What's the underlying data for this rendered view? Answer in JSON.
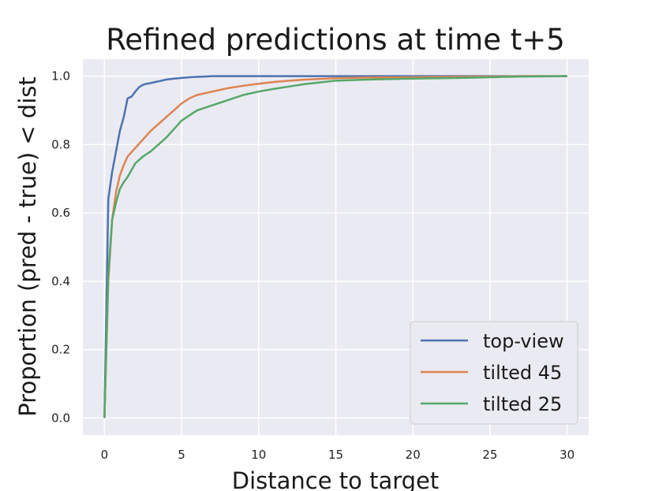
{
  "chart_data": {
    "type": "line",
    "title": "Refined predictions at time t+5",
    "xlabel": "Distance to target",
    "ylabel": "Proportion (pred - true) < dist",
    "xlim": [
      -1.4,
      31.4
    ],
    "ylim": [
      -0.05,
      1.05
    ],
    "xticks": [
      0,
      5,
      10,
      15,
      20,
      25,
      30
    ],
    "yticks": [
      0.0,
      0.2,
      0.4,
      0.6,
      0.8,
      1.0
    ],
    "ytick_labels": [
      "0.0",
      "0.2",
      "0.4",
      "0.6",
      "0.8",
      "1.0"
    ],
    "grid": true,
    "legend_position": "lower-right",
    "series": [
      {
        "name": "top-view",
        "color": "#4c72b0",
        "x": [
          0,
          0.25,
          0.5,
          0.75,
          1.0,
          1.25,
          1.5,
          1.75,
          2.0,
          2.25,
          2.5,
          2.75,
          3.0,
          3.5,
          4.0,
          4.5,
          5.0,
          5.5,
          6.0,
          6.5,
          7.0,
          10,
          15,
          20,
          25,
          30
        ],
        "y": [
          0.0,
          0.64,
          0.72,
          0.78,
          0.84,
          0.88,
          0.935,
          0.94,
          0.955,
          0.968,
          0.975,
          0.978,
          0.98,
          0.985,
          0.99,
          0.993,
          0.995,
          0.997,
          0.998,
          0.999,
          1.0,
          1.0,
          1.0,
          1.0,
          1.0,
          1.0
        ]
      },
      {
        "name": "tilted 45",
        "color": "#dd8452",
        "x": [
          0,
          0.25,
          0.5,
          0.75,
          1.0,
          1.25,
          1.5,
          2.0,
          2.5,
          3.0,
          3.5,
          4.0,
          4.5,
          5.0,
          5.5,
          6.0,
          7.0,
          8.0,
          9.0,
          10.0,
          11.0,
          12.0,
          13.0,
          14.0,
          15.0,
          17.0,
          20.0,
          23.0,
          25.0,
          27.0,
          30.0
        ],
        "y": [
          0.0,
          0.4,
          0.58,
          0.66,
          0.71,
          0.74,
          0.765,
          0.79,
          0.815,
          0.84,
          0.86,
          0.88,
          0.9,
          0.92,
          0.935,
          0.945,
          0.955,
          0.965,
          0.972,
          0.978,
          0.983,
          0.987,
          0.99,
          0.992,
          0.994,
          0.996,
          0.997,
          0.998,
          0.999,
          1.0,
          1.0
        ]
      },
      {
        "name": "tilted 25",
        "color": "#55a868",
        "x": [
          0,
          0.25,
          0.5,
          0.75,
          1.0,
          1.25,
          1.5,
          2.0,
          2.5,
          3.0,
          3.5,
          4.0,
          4.5,
          5.0,
          5.5,
          6.0,
          7.0,
          8.0,
          9.0,
          10.0,
          11.0,
          12.0,
          13.0,
          14.0,
          15.0,
          17.0,
          20.0,
          23.0,
          25.0,
          27.0,
          30.0
        ],
        "y": [
          0.0,
          0.42,
          0.58,
          0.63,
          0.67,
          0.69,
          0.705,
          0.745,
          0.765,
          0.78,
          0.8,
          0.82,
          0.845,
          0.87,
          0.885,
          0.9,
          0.915,
          0.93,
          0.945,
          0.955,
          0.963,
          0.97,
          0.977,
          0.982,
          0.987,
          0.99,
          0.993,
          0.995,
          0.997,
          0.999,
          1.0
        ]
      }
    ]
  }
}
